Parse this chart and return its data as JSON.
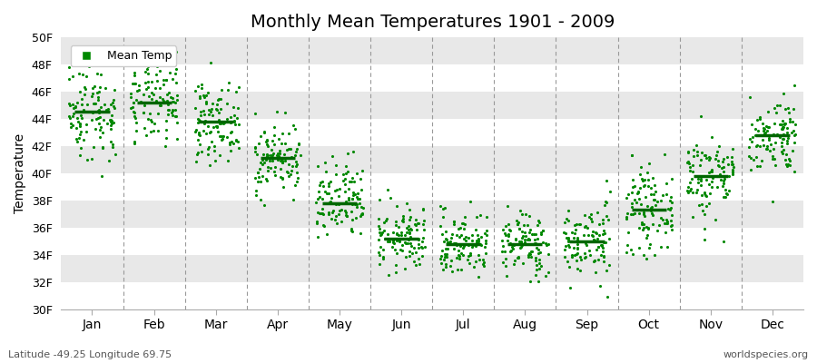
{
  "title": "Monthly Mean Temperatures 1901 - 2009",
  "ylabel": "Temperature",
  "xlabel_bottom": "Latitude -49.25 Longitude 69.75",
  "watermark": "worldspecies.org",
  "ylim": [
    30,
    50
  ],
  "yticks": [
    30,
    32,
    34,
    36,
    38,
    40,
    42,
    44,
    46,
    48,
    50
  ],
  "ytick_labels": [
    "30F",
    "32F",
    "34F",
    "36F",
    "38F",
    "40F",
    "42F",
    "44F",
    "46F",
    "48F",
    "50F"
  ],
  "months": [
    "Jan",
    "Feb",
    "Mar",
    "Apr",
    "May",
    "Jun",
    "Jul",
    "Aug",
    "Sep",
    "Oct",
    "Nov",
    "Dec"
  ],
  "month_means": [
    44.5,
    45.2,
    43.8,
    41.1,
    37.8,
    35.2,
    34.8,
    34.8,
    35.0,
    37.3,
    39.8,
    42.8
  ],
  "month_spreads": [
    1.8,
    1.6,
    1.4,
    1.3,
    1.5,
    1.2,
    1.2,
    1.2,
    1.4,
    1.5,
    1.6,
    1.4
  ],
  "dot_color": "#008800",
  "mean_line_color": "#006600",
  "background_color": "#ffffff",
  "band_color_odd": "#e8e8e8",
  "band_color_even": "#f4f4f4",
  "legend_label": "Mean Temp",
  "n_years": 109,
  "seed": 42,
  "figwidth": 9.0,
  "figheight": 4.0,
  "dpi": 100
}
